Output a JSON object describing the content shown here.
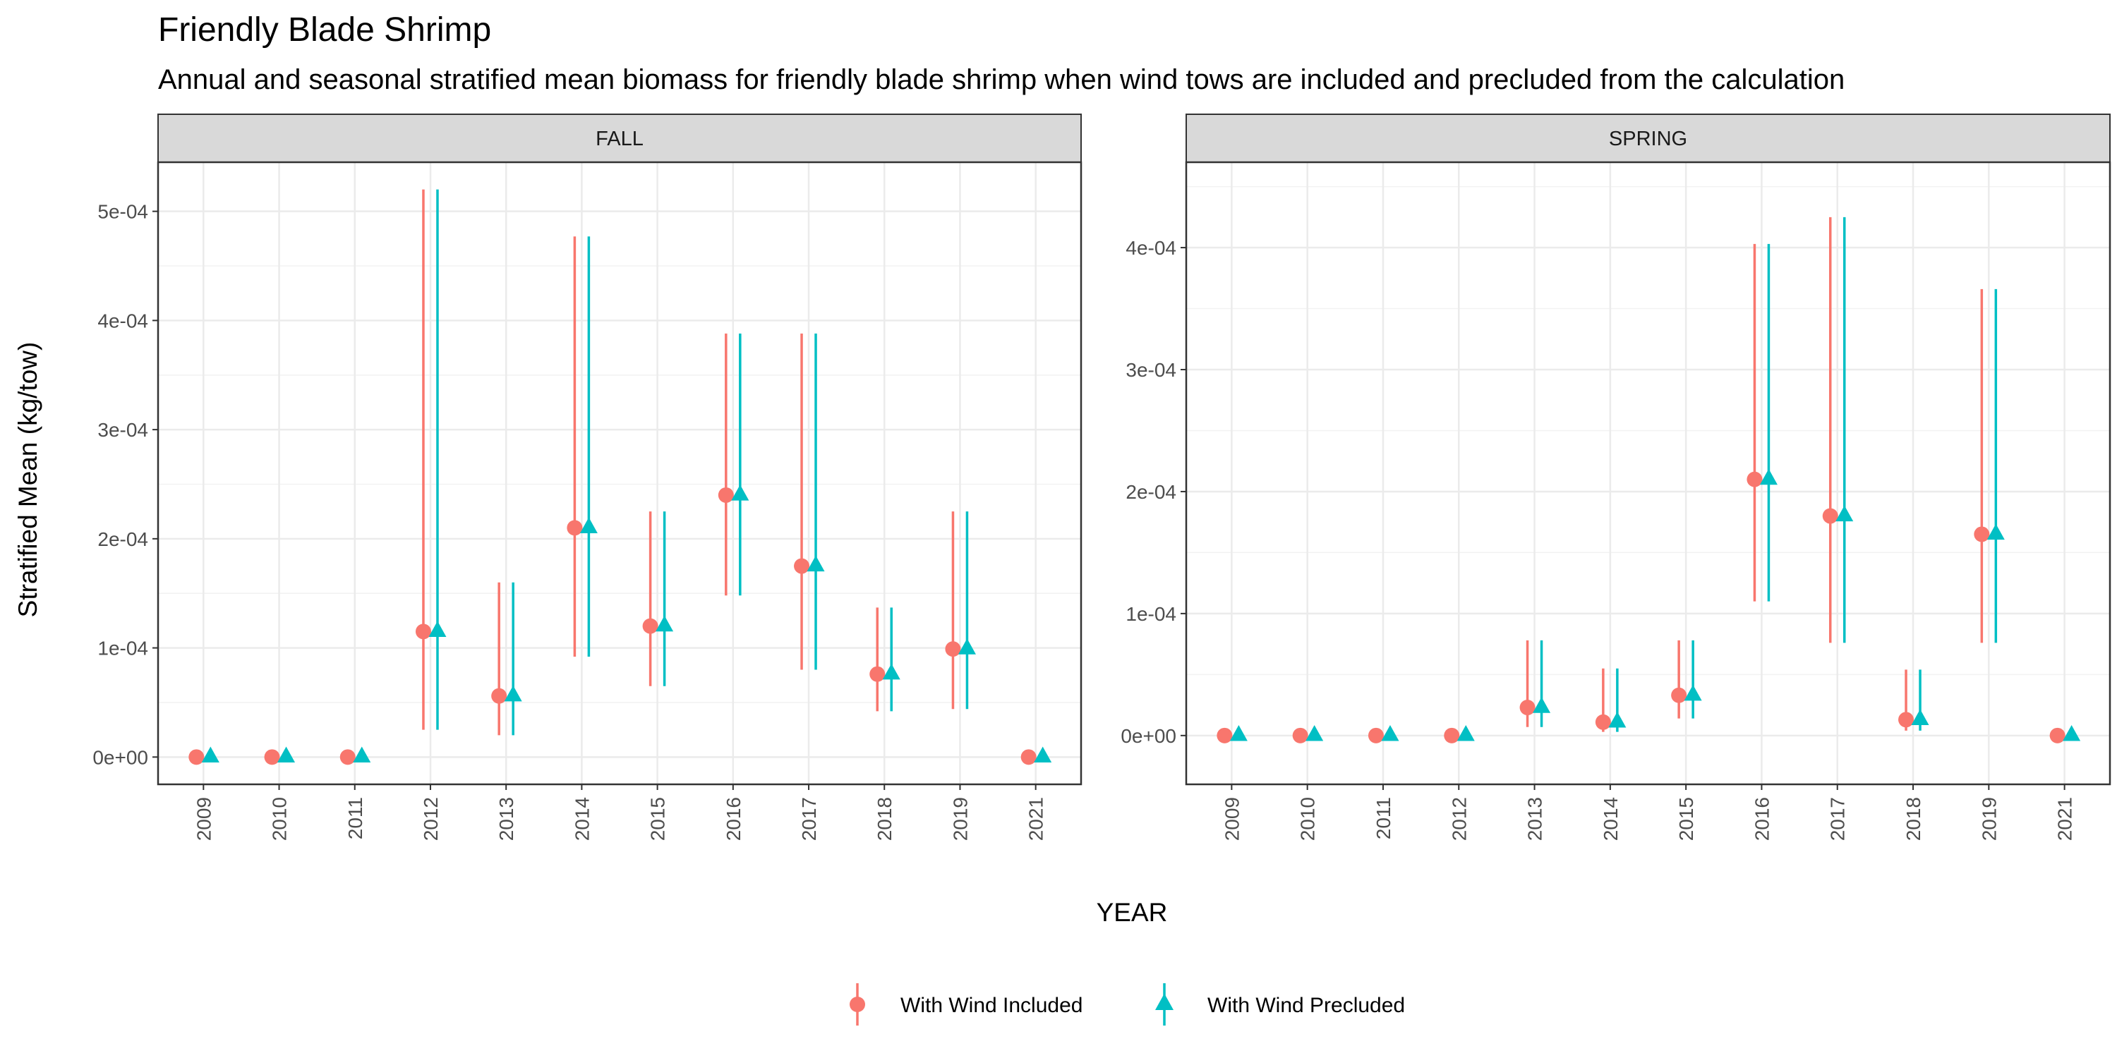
{
  "chart_data": {
    "type": "pointrange",
    "title": "Friendly Blade Shrimp",
    "subtitle": "Annual and seasonal stratified mean biomass for friendly blade shrimp when wind tows are included and precluded from the calculation",
    "xlabel": "YEAR",
    "ylabel": "Stratified Mean (kg/tow)",
    "categories": [
      "2009",
      "2010",
      "2011",
      "2012",
      "2013",
      "2014",
      "2015",
      "2016",
      "2017",
      "2018",
      "2019",
      "2021"
    ],
    "legend": {
      "position": "bottom",
      "entries": [
        {
          "name": "With Wind Included",
          "color": "#F8766D",
          "shape": "circle"
        },
        {
          "name": "With Wind Precluded",
          "color": "#00BFC4",
          "shape": "triangle"
        }
      ]
    },
    "grid": true,
    "panels": [
      {
        "name": "FALL",
        "ylim": [
          -2.5e-05,
          0.000545
        ],
        "yticks": [
          0,
          0.0001,
          0.0002,
          0.0003,
          0.0004,
          0.0005
        ],
        "ytick_labels": [
          "0e+00",
          "1e-04",
          "2e-04",
          "3e-04",
          "4e-04",
          "5e-04"
        ],
        "series": [
          {
            "name": "With Wind Included",
            "values": [
              0,
              0,
              0,
              0.000115,
              5.6e-05,
              0.00021,
              0.00012,
              0.00024,
              0.000175,
              7.6e-05,
              9.9e-05,
              0
            ],
            "lower": [
              0,
              0,
              0,
              2.5e-05,
              2e-05,
              9.2e-05,
              6.5e-05,
              0.000148,
              8e-05,
              4.2e-05,
              4.4e-05,
              0
            ],
            "upper": [
              0,
              0,
              0,
              0.00052,
              0.00016,
              0.000477,
              0.000225,
              0.000388,
              0.000388,
              0.000137,
              0.000225,
              0
            ]
          },
          {
            "name": "With Wind Precluded",
            "values": [
              0,
              0,
              0,
              0.000115,
              5.6e-05,
              0.00021,
              0.00012,
              0.00024,
              0.000175,
              7.6e-05,
              9.9e-05,
              0
            ],
            "lower": [
              0,
              0,
              0,
              2.5e-05,
              2e-05,
              9.2e-05,
              6.5e-05,
              0.000148,
              8e-05,
              4.2e-05,
              4.4e-05,
              0
            ],
            "upper": [
              0,
              0,
              0,
              0.00052,
              0.00016,
              0.000477,
              0.000225,
              0.000388,
              0.000388,
              0.000137,
              0.000225,
              0
            ]
          }
        ]
      },
      {
        "name": "SPRING",
        "ylim": [
          -4e-05,
          0.00047
        ],
        "yticks": [
          0,
          0.0001,
          0.0002,
          0.0003,
          0.0004
        ],
        "ytick_labels": [
          "0e+00",
          "1e-04",
          "2e-04",
          "3e-04",
          "4e-04"
        ],
        "series": [
          {
            "name": "With Wind Included",
            "values": [
              0,
              0,
              0,
              0,
              2.3e-05,
              1.1e-05,
              3.3e-05,
              0.00021,
              0.00018,
              1.3e-05,
              0.000165,
              0
            ],
            "lower": [
              0,
              0,
              0,
              0,
              7e-06,
              3e-06,
              1.4e-05,
              0.00011,
              7.6e-05,
              4e-06,
              7.6e-05,
              0
            ],
            "upper": [
              0,
              0,
              0,
              0,
              7.8e-05,
              5.5e-05,
              7.8e-05,
              0.000403,
              0.000425,
              5.4e-05,
              0.000366,
              0
            ]
          },
          {
            "name": "With Wind Precluded",
            "values": [
              0,
              0,
              0,
              0,
              2.3e-05,
              1.1e-05,
              3.3e-05,
              0.00021,
              0.00018,
              1.3e-05,
              0.000165,
              0
            ],
            "lower": [
              0,
              0,
              0,
              0,
              7e-06,
              3e-06,
              1.4e-05,
              0.00011,
              7.6e-05,
              4e-06,
              7.6e-05,
              0
            ],
            "upper": [
              0,
              0,
              0,
              0,
              7.8e-05,
              5.5e-05,
              7.8e-05,
              0.000403,
              0.000425,
              5.4e-05,
              0.000366,
              0
            ]
          }
        ]
      }
    ]
  }
}
